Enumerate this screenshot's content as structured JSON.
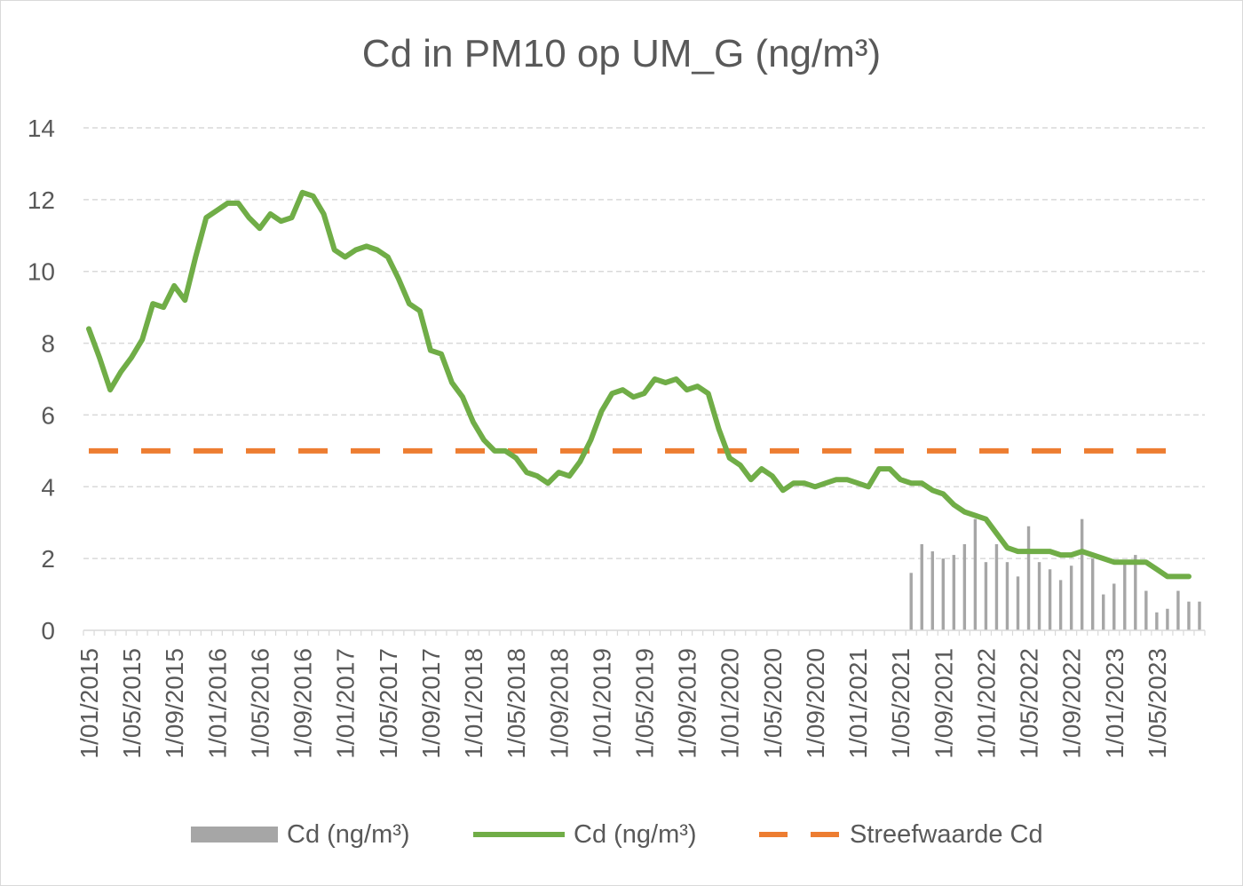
{
  "chart_data": {
    "type": "line",
    "title": "Cd in PM10 op UM_G (ng/m³)",
    "xlabel": "",
    "ylabel": "",
    "ylim": [
      0,
      14
    ],
    "yticks": [
      "0",
      "2",
      "4",
      "6",
      "8",
      "10",
      "12",
      "14"
    ],
    "grid": true,
    "legend_position": "bottom",
    "x_tick_labels": [
      "1/01/2015",
      "1/05/2015",
      "1/09/2015",
      "1/01/2016",
      "1/05/2016",
      "1/09/2016",
      "1/01/2017",
      "1/05/2017",
      "1/09/2017",
      "1/01/2018",
      "1/05/2018",
      "1/09/2018",
      "1/01/2019",
      "1/05/2019",
      "1/09/2019",
      "1/01/2020",
      "1/05/2020",
      "1/09/2020",
      "1/01/2021",
      "1/05/2021",
      "1/09/2021",
      "1/01/2022",
      "1/05/2022",
      "1/09/2022",
      "1/01/2023",
      "1/05/2023"
    ],
    "series": [
      {
        "name": "Cd (ng/m³)",
        "kind": "bar",
        "color": "#a6a6a6",
        "x": [
          "2021-06",
          "2021-07",
          "2021-08",
          "2021-09",
          "2021-10",
          "2021-11",
          "2021-12",
          "2022-01",
          "2022-02",
          "2022-03",
          "2022-04",
          "2022-05",
          "2022-06",
          "2022-07",
          "2022-08",
          "2022-09",
          "2022-10",
          "2022-11",
          "2022-12",
          "2023-01",
          "2023-02",
          "2023-03",
          "2023-04",
          "2023-05",
          "2023-06",
          "2023-07",
          "2023-08",
          "2023-09"
        ],
        "values": [
          1.6,
          2.4,
          2.2,
          2.0,
          2.1,
          2.4,
          3.1,
          1.9,
          2.4,
          1.9,
          1.5,
          2.9,
          1.9,
          1.7,
          1.4,
          1.8,
          3.1,
          2.0,
          1.0,
          1.3,
          1.9,
          2.1,
          1.1,
          0.5,
          0.6,
          1.1,
          0.8,
          0.8
        ]
      },
      {
        "name": "Cd (ng/m³)",
        "kind": "line",
        "color": "#70ad47",
        "x": [
          "2015-01",
          "2015-02",
          "2015-03",
          "2015-04",
          "2015-05",
          "2015-06",
          "2015-07",
          "2015-08",
          "2015-09",
          "2015-10",
          "2015-11",
          "2015-12",
          "2016-01",
          "2016-02",
          "2016-03",
          "2016-04",
          "2016-05",
          "2016-06",
          "2016-07",
          "2016-08",
          "2016-09",
          "2016-10",
          "2016-11",
          "2016-12",
          "2017-01",
          "2017-02",
          "2017-03",
          "2017-04",
          "2017-05",
          "2017-06",
          "2017-07",
          "2017-08",
          "2017-09",
          "2017-10",
          "2017-11",
          "2017-12",
          "2018-01",
          "2018-02",
          "2018-03",
          "2018-04",
          "2018-05",
          "2018-06",
          "2018-07",
          "2018-08",
          "2018-09",
          "2018-10",
          "2018-11",
          "2018-12",
          "2019-01",
          "2019-02",
          "2019-03",
          "2019-04",
          "2019-05",
          "2019-06",
          "2019-07",
          "2019-08",
          "2019-09",
          "2019-10",
          "2019-11",
          "2019-12",
          "2020-01",
          "2020-02",
          "2020-03",
          "2020-04",
          "2020-05",
          "2020-06",
          "2020-07",
          "2020-08",
          "2020-09",
          "2020-10",
          "2020-11",
          "2020-12",
          "2021-01",
          "2021-02",
          "2021-03",
          "2021-04",
          "2021-05",
          "2021-06",
          "2021-07",
          "2021-08",
          "2021-09",
          "2021-10",
          "2021-11",
          "2021-12",
          "2022-01",
          "2022-02",
          "2022-03",
          "2022-04",
          "2022-05",
          "2022-06",
          "2022-07",
          "2022-08",
          "2022-09",
          "2022-10",
          "2022-11",
          "2022-12",
          "2023-01",
          "2023-02",
          "2023-03",
          "2023-04",
          "2023-05",
          "2023-06",
          "2023-07",
          "2023-08"
        ],
        "values": [
          8.4,
          7.6,
          6.7,
          7.2,
          7.6,
          8.1,
          9.1,
          9.0,
          9.6,
          9.2,
          10.4,
          11.5,
          11.7,
          11.9,
          11.9,
          11.5,
          11.2,
          11.6,
          11.4,
          11.5,
          12.2,
          12.1,
          11.6,
          10.6,
          10.4,
          10.6,
          10.7,
          10.6,
          10.4,
          9.8,
          9.1,
          8.9,
          7.8,
          7.7,
          6.9,
          6.5,
          5.8,
          5.3,
          5.0,
          5.0,
          4.8,
          4.4,
          4.3,
          4.1,
          4.4,
          4.3,
          4.7,
          5.3,
          6.1,
          6.6,
          6.7,
          6.5,
          6.6,
          7.0,
          6.9,
          7.0,
          6.7,
          6.8,
          6.6,
          5.6,
          4.8,
          4.6,
          4.2,
          4.5,
          4.3,
          3.9,
          4.1,
          4.1,
          4.0,
          4.1,
          4.2,
          4.2,
          4.1,
          4.0,
          4.5,
          4.5,
          4.2,
          4.1,
          4.1,
          3.9,
          3.8,
          3.5,
          3.3,
          3.2,
          3.1,
          2.7,
          2.3,
          2.2,
          2.2,
          2.2,
          2.2,
          2.1,
          2.1,
          2.2,
          2.1,
          2.0,
          1.9,
          1.9,
          1.9,
          1.9,
          1.7,
          1.5,
          1.5,
          1.5
        ]
      },
      {
        "name": "Streefwaarde Cd",
        "kind": "dashed-line",
        "color": "#ed7d31",
        "x": [
          "2015-01",
          "2023-06"
        ],
        "values": [
          5,
          5
        ]
      }
    ]
  }
}
